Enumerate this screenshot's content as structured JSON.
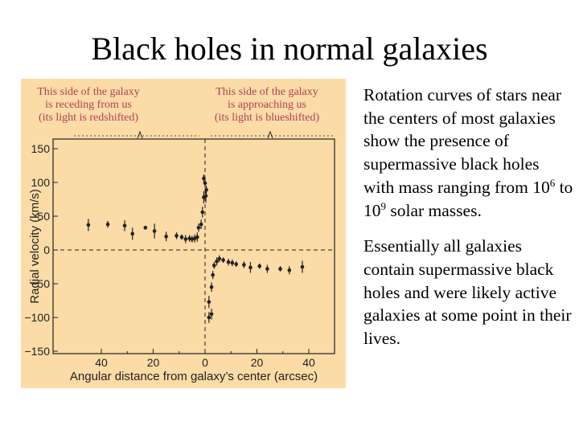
{
  "slide": {
    "title": "Black holes in normal galaxies",
    "paragraph1": {
      "before": "Rotation curves of stars near the centers of most galaxies show the presence of supermassive black holes with mass ranging from 10",
      "exp1": "6",
      "middle": " to 10",
      "exp2": "9",
      "after": " solar masses."
    },
    "paragraph2": "Essentially all galaxies contain supermassive black holes and were likely active galaxies at some point in their lives."
  },
  "colors": {
    "figure_bg": "#fbdba6",
    "annotation": "#b0405a",
    "data": "#222222"
  },
  "chart_data": {
    "type": "scatter",
    "annotation_left": [
      "This side of the galaxy",
      "is receding from us",
      "(its light is redshifted)"
    ],
    "annotation_right": [
      "This side of the galaxy",
      "is approaching us",
      "(its light is blueshifted)"
    ],
    "xlabel": "Angular distance from galaxy’s center (arcsec)",
    "ylabel": "Radial velocity (km/s)",
    "xlim": [
      -44,
      44
    ],
    "ylim": [
      -150,
      150
    ],
    "xticks": [
      -40,
      -20,
      0,
      20,
      40
    ],
    "xtick_labels": [
      "40",
      "20",
      "0",
      "20",
      "40"
    ],
    "yticks": [
      150,
      100,
      50,
      0,
      -50,
      -100,
      -150
    ],
    "ytick_labels": [
      "150",
      "100",
      "50",
      "0",
      "−50",
      "−100",
      "−150"
    ],
    "points": [
      {
        "x": -45,
        "y": 37,
        "err": 9
      },
      {
        "x": -37.5,
        "y": 38,
        "err": 5
      },
      {
        "x": -31,
        "y": 36,
        "err": 8
      },
      {
        "x": -28,
        "y": 24,
        "err": 9
      },
      {
        "x": -23,
        "y": 33,
        "err": 3
      },
      {
        "x": -19.5,
        "y": 28,
        "err": 11
      },
      {
        "x": -15,
        "y": 20,
        "err": 7
      },
      {
        "x": -11,
        "y": 21,
        "err": 5
      },
      {
        "x": -9,
        "y": 19,
        "err": 4
      },
      {
        "x": -7.5,
        "y": 16,
        "err": 6
      },
      {
        "x": -6,
        "y": 17,
        "err": 5
      },
      {
        "x": -5,
        "y": 16,
        "err": 5
      },
      {
        "x": -4,
        "y": 17,
        "err": 6
      },
      {
        "x": -3,
        "y": 19,
        "err": 7
      },
      {
        "x": -2.5,
        "y": 33,
        "err": 6
      },
      {
        "x": -1.5,
        "y": 38,
        "err": 7
      },
      {
        "x": -1,
        "y": 56,
        "err": 8
      },
      {
        "x": -0.5,
        "y": 78,
        "err": 9
      },
      {
        "x": -0.5,
        "y": 106,
        "err": 6
      },
      {
        "x": 0,
        "y": 99,
        "err": 7
      },
      {
        "x": 0.5,
        "y": 89,
        "err": 6
      },
      {
        "x": 0.3,
        "y": 80,
        "err": 10
      },
      {
        "x": 1.5,
        "y": -77,
        "err": 9
      },
      {
        "x": 1.5,
        "y": -100,
        "err": 8
      },
      {
        "x": 2.5,
        "y": -95,
        "err": 8
      },
      {
        "x": 2.5,
        "y": -55,
        "err": 7
      },
      {
        "x": 3,
        "y": -37,
        "err": 6
      },
      {
        "x": 3.5,
        "y": -23,
        "err": 5
      },
      {
        "x": 4.5,
        "y": -17,
        "err": 6
      },
      {
        "x": 5.5,
        "y": -13,
        "err": 5
      },
      {
        "x": 7,
        "y": -15,
        "err": 4
      },
      {
        "x": 9,
        "y": -18,
        "err": 5
      },
      {
        "x": 10.5,
        "y": -19,
        "err": 5
      },
      {
        "x": 12,
        "y": -21,
        "err": 4
      },
      {
        "x": 15,
        "y": -22,
        "err": 5
      },
      {
        "x": 17.5,
        "y": -26,
        "err": 8
      },
      {
        "x": 21,
        "y": -24,
        "err": 4
      },
      {
        "x": 24,
        "y": -28,
        "err": 6
      },
      {
        "x": 29,
        "y": -28,
        "err": 4
      },
      {
        "x": 32.5,
        "y": -30,
        "err": 6
      },
      {
        "x": 37.5,
        "y": -25,
        "err": 9
      }
    ]
  }
}
